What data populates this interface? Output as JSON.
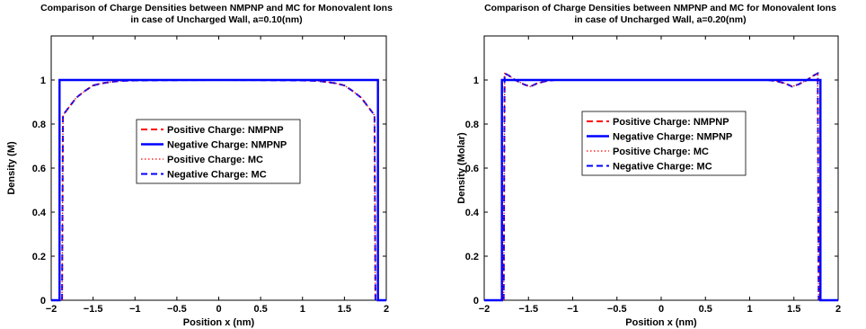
{
  "chart_data": [
    {
      "type": "line",
      "title": "Comparison of Charge Densities between NMPNP and MC for Monovalent Ions",
      "subtitle": "in case of Uncharged Wall, a=0.10(nm)",
      "xlabel": "Position x (nm)",
      "ylabel": "Density (M)",
      "xlim": [
        -2,
        2
      ],
      "ylim": [
        0,
        1.2
      ],
      "xticks": [
        "−2",
        "−1.5",
        "−1",
        "−0.5",
        "0",
        "0.5",
        "1",
        "1.5",
        "2"
      ],
      "yticks": [
        "0",
        "0.2",
        "0.4",
        "0.6",
        "0.8",
        "1"
      ],
      "legend_position": "center",
      "series": [
        {
          "name": "Positive Charge: NMPNP",
          "color": "#ff0000",
          "style": "dashed",
          "x": [
            -2,
            -1.9,
            -1.9,
            1.9,
            1.9,
            2
          ],
          "y": [
            0,
            0,
            1,
            1,
            0,
            0
          ]
        },
        {
          "name": "Negative Charge: NMPNP",
          "color": "#0000ff",
          "style": "solid",
          "x": [
            -2,
            -1.9,
            -1.9,
            1.9,
            1.9,
            2
          ],
          "y": [
            0,
            0,
            1,
            1,
            0,
            0
          ]
        },
        {
          "name": "Positive Charge: MC",
          "color": "#ff0000",
          "style": "dotted",
          "x": [
            -1.87,
            -1.86,
            -1.8,
            -1.7,
            -1.6,
            -1.5,
            -1.4,
            -1.3,
            -1.2,
            -1.0,
            -0.5,
            0,
            0.5,
            1.0,
            1.2,
            1.3,
            1.4,
            1.5,
            1.6,
            1.7,
            1.8,
            1.86,
            1.87
          ],
          "y": [
            0,
            0.84,
            0.87,
            0.92,
            0.95,
            0.975,
            0.985,
            0.99,
            0.995,
            0.998,
            0.999,
            1.0,
            0.999,
            0.998,
            0.995,
            0.99,
            0.985,
            0.975,
            0.95,
            0.92,
            0.87,
            0.84,
            0
          ]
        },
        {
          "name": "Negative Charge: MC",
          "color": "#0000ff",
          "style": "dashed",
          "x": [
            -1.87,
            -1.86,
            -1.8,
            -1.7,
            -1.6,
            -1.5,
            -1.4,
            -1.3,
            -1.2,
            -1.0,
            -0.5,
            0,
            0.5,
            1.0,
            1.2,
            1.3,
            1.4,
            1.5,
            1.6,
            1.7,
            1.8,
            1.86,
            1.87
          ],
          "y": [
            0,
            0.84,
            0.87,
            0.92,
            0.95,
            0.975,
            0.985,
            0.99,
            0.995,
            0.998,
            0.999,
            1.0,
            0.999,
            0.998,
            0.995,
            0.99,
            0.985,
            0.975,
            0.95,
            0.92,
            0.87,
            0.84,
            0
          ]
        }
      ]
    },
    {
      "type": "line",
      "title": "Comparison of Charge Densities between NMPNP and MC for Monovalent Ions",
      "subtitle": "in case of Uncharged Wall, a=0.20(nm)",
      "xlabel": "Position x (nm)",
      "ylabel": "Density (Molar)",
      "xlim": [
        -2,
        2
      ],
      "ylim": [
        0,
        1.2
      ],
      "xticks": [
        "−2",
        "−1.5",
        "−1",
        "−0.5",
        "0",
        "0.5",
        "1",
        "1.5",
        "2"
      ],
      "yticks": [
        "0",
        "0.2",
        "0.4",
        "0.6",
        "0.8",
        "1"
      ],
      "legend_position": "center",
      "series": [
        {
          "name": "Positive Charge: NMPNP",
          "color": "#ff0000",
          "style": "dashed",
          "x": [
            -2,
            -1.8,
            -1.8,
            1.8,
            1.8,
            2
          ],
          "y": [
            0,
            0,
            1,
            1,
            0,
            0
          ]
        },
        {
          "name": "Negative Charge: NMPNP",
          "color": "#0000ff",
          "style": "solid",
          "x": [
            -2,
            -1.8,
            -1.8,
            1.8,
            1.8,
            2
          ],
          "y": [
            0,
            0,
            1,
            1,
            0,
            0
          ]
        },
        {
          "name": "Positive Charge: MC",
          "color": "#ff0000",
          "style": "dotted",
          "x": [
            -1.78,
            -1.77,
            -1.72,
            -1.65,
            -1.55,
            -1.48,
            -1.4,
            -1.3,
            -1.2,
            -1.0,
            -0.5,
            0,
            0.5,
            1.0,
            1.2,
            1.3,
            1.4,
            1.48,
            1.55,
            1.65,
            1.72,
            1.77,
            1.78
          ],
          "y": [
            0,
            1.03,
            1.02,
            1.0,
            0.98,
            0.97,
            0.985,
            0.995,
            1.0,
            1.0,
            1.0,
            1.0,
            1.0,
            1.0,
            1.0,
            0.995,
            0.985,
            0.97,
            0.98,
            1.0,
            1.02,
            1.03,
            0
          ]
        },
        {
          "name": "Negative Charge: MC",
          "color": "#0000ff",
          "style": "dashed",
          "x": [
            -1.78,
            -1.77,
            -1.72,
            -1.65,
            -1.55,
            -1.48,
            -1.4,
            -1.3,
            -1.2,
            -1.0,
            -0.5,
            0,
            0.5,
            1.0,
            1.2,
            1.3,
            1.4,
            1.48,
            1.55,
            1.65,
            1.72,
            1.77,
            1.78
          ],
          "y": [
            0,
            1.03,
            1.02,
            1.0,
            0.98,
            0.97,
            0.985,
            0.995,
            1.0,
            1.0,
            1.0,
            1.0,
            1.0,
            1.0,
            1.0,
            0.995,
            0.985,
            0.97,
            0.98,
            1.0,
            1.02,
            1.03,
            0
          ]
        }
      ]
    }
  ]
}
